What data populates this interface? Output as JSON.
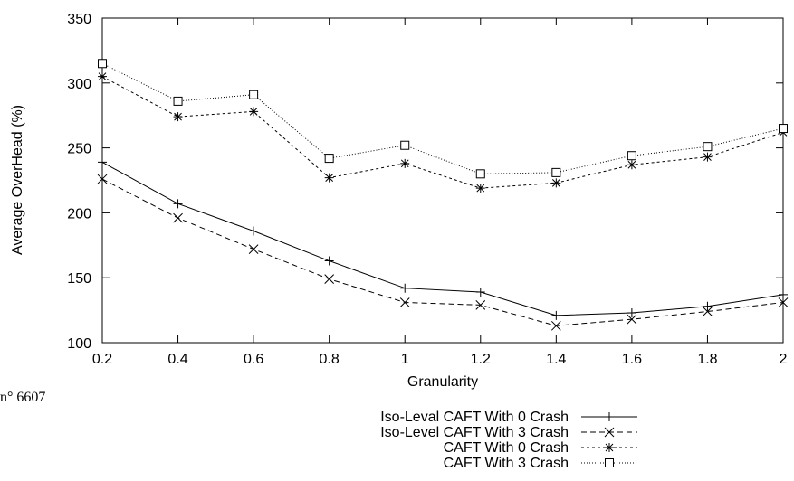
{
  "page_fragment": "n° 6607",
  "chart_data": {
    "type": "line",
    "xlabel": "Granularity",
    "ylabel": "Average OverHead (%)",
    "xlim": [
      0.2,
      2
    ],
    "ylim": [
      100,
      350
    ],
    "x_ticks": [
      "0.2",
      "0.4",
      "0.6",
      "0.8",
      "1",
      "1.2",
      "1.4",
      "1.6",
      "1.8",
      "2"
    ],
    "y_ticks": [
      "100",
      "150",
      "200",
      "250",
      "300",
      "350"
    ],
    "x": [
      0.2,
      0.4,
      0.6,
      0.8,
      1.0,
      1.2,
      1.4,
      1.6,
      1.8,
      2.0
    ],
    "grid": false,
    "legend_position": "below",
    "series": [
      {
        "name": "Iso-Leval CAFT With 0 Crash",
        "marker": "plus",
        "dash": "solid",
        "values": [
          239,
          207,
          186,
          163,
          142,
          139,
          121,
          123,
          128,
          137
        ]
      },
      {
        "name": "Iso-Level CAFT With 3 Crash",
        "marker": "cross",
        "dash": "dashed",
        "values": [
          226,
          196,
          172,
          149,
          131,
          129,
          113,
          118,
          124,
          131
        ]
      },
      {
        "name": "CAFT With 0 Crash",
        "marker": "star",
        "dash": "short-dashed",
        "values": [
          305,
          274,
          278,
          227,
          238,
          219,
          223,
          237,
          243,
          262
        ]
      },
      {
        "name": "CAFT With 3 Crash",
        "marker": "square",
        "dash": "dotted",
        "values": [
          315,
          286,
          291,
          242,
          252,
          230,
          231,
          244,
          251,
          265
        ]
      }
    ]
  }
}
